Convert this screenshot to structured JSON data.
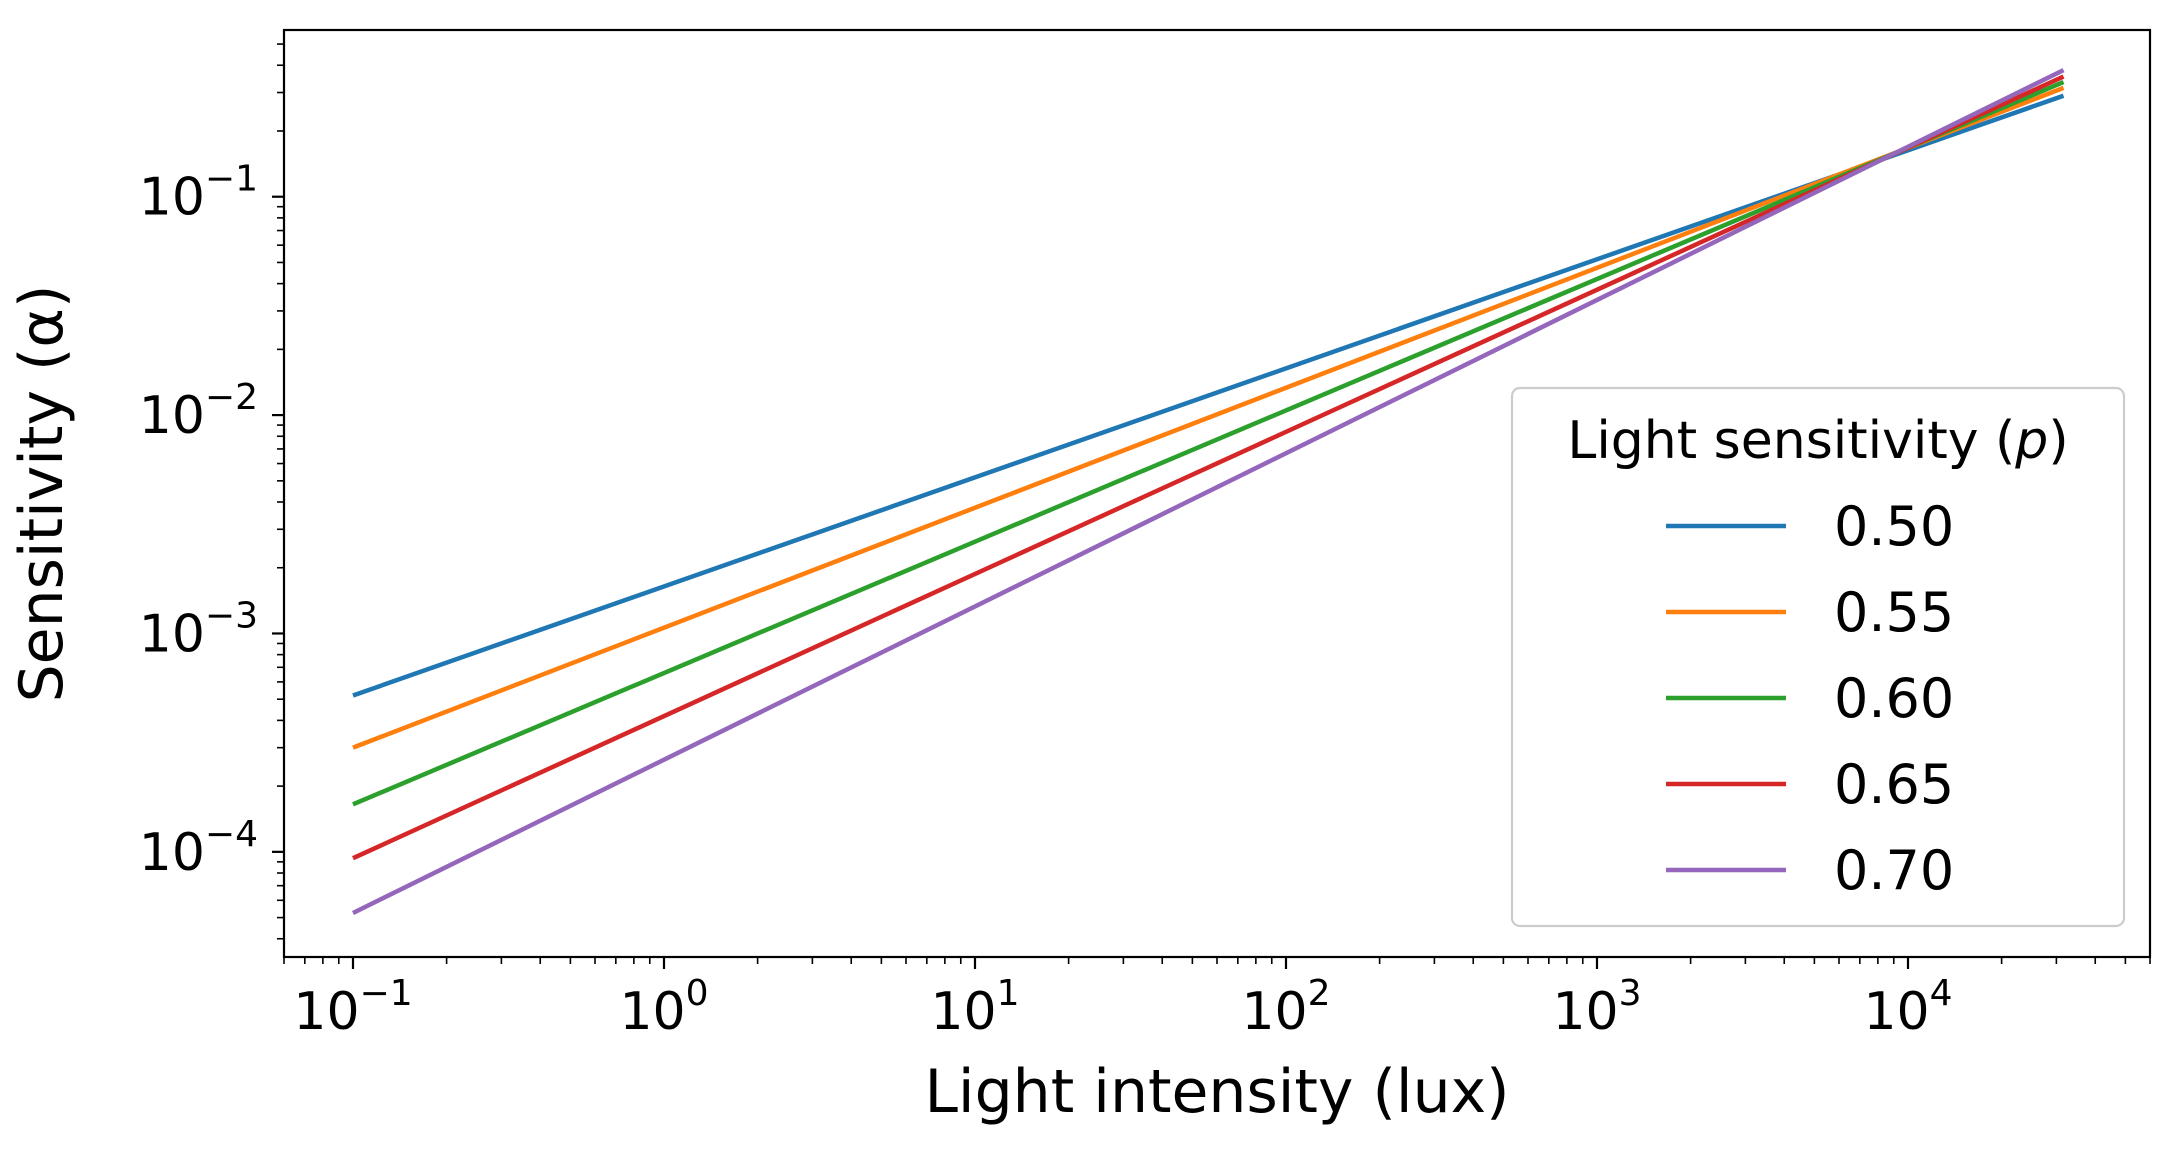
{
  "chart_data": {
    "type": "line",
    "title": "",
    "xlabel": "Light intensity (lux)",
    "ylabel": "Sensitivity (α)",
    "xscale": "log",
    "yscale": "log",
    "xlim": [
      0.06,
      60000
    ],
    "ylim": [
      3.3e-05,
      0.58
    ],
    "x_ticks": [
      {
        "value": 0.1,
        "base": "10",
        "exp": "−1"
      },
      {
        "value": 1,
        "base": "10",
        "exp": "0"
      },
      {
        "value": 10,
        "base": "10",
        "exp": "1"
      },
      {
        "value": 100,
        "base": "10",
        "exp": "2"
      },
      {
        "value": 1000,
        "base": "10",
        "exp": "3"
      },
      {
        "value": 10000,
        "base": "10",
        "exp": "4"
      }
    ],
    "y_ticks": [
      {
        "value": 0.0001,
        "base": "10",
        "exp": "−4"
      },
      {
        "value": 0.001,
        "base": "10",
        "exp": "−3"
      },
      {
        "value": 0.01,
        "base": "10",
        "exp": "−2"
      },
      {
        "value": 0.1,
        "base": "10",
        "exp": "−1"
      }
    ],
    "x_range": [
      0.1,
      31623
    ],
    "series": [
      {
        "name": "0.50",
        "p": 0.5,
        "color": "#1f77b4",
        "y_start": 0.00052,
        "y_end": 0.29
      },
      {
        "name": "0.55",
        "p": 0.55,
        "color": "#ff7f0e",
        "y_start": 0.0003,
        "y_end": 0.315
      },
      {
        "name": "0.60",
        "p": 0.6,
        "color": "#2ca02c",
        "y_start": 0.000165,
        "y_end": 0.335
      },
      {
        "name": "0.65",
        "p": 0.65,
        "color": "#d62728",
        "y_start": 9.35e-05,
        "y_end": 0.355
      },
      {
        "name": "0.70",
        "p": 0.7,
        "color": "#9467bd",
        "y_start": 5.25e-05,
        "y_end": 0.38
      }
    ],
    "legend": {
      "title_prefix": "Light sensitivity (",
      "title_var": "p",
      "title_suffix": ")",
      "position": "center-right"
    },
    "grid": false
  }
}
